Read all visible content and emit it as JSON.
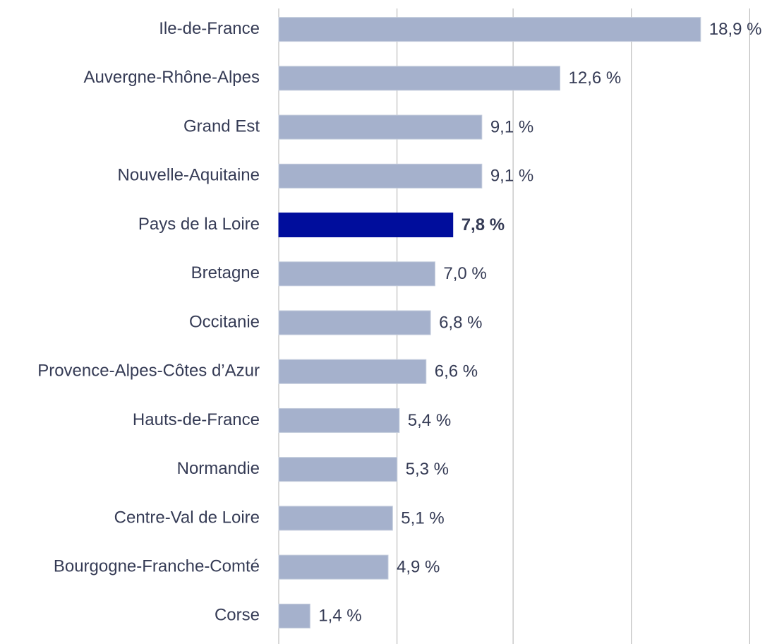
{
  "chart_data": {
    "type": "bar",
    "orientation": "horizontal",
    "categories": [
      "Ile-de-France",
      "Auvergne-Rhône-Alpes",
      "Grand Est",
      "Nouvelle-Aquitaine",
      "Pays de la Loire",
      "Bretagne",
      "Occitanie",
      "Provence-Alpes-Côtes d’Azur",
      "Hauts-de-France",
      "Normandie",
      "Centre-Val de Loire",
      "Bourgogne-Franche-Comté",
      "Corse"
    ],
    "values": [
      18.9,
      12.6,
      9.1,
      9.1,
      7.8,
      7.0,
      6.8,
      6.6,
      5.4,
      5.3,
      5.1,
      4.9,
      1.4
    ],
    "value_labels": [
      "18,9 %",
      "12,6 %",
      "9,1 %",
      "9,1 %",
      "7,8 %",
      "7,0 %",
      "6,8 %",
      "6,6 %",
      "5,4 %",
      "5,3 %",
      "5,1 %",
      "4,9 %",
      "1,4 %"
    ],
    "color": "#a5b1cc",
    "highlight": {
      "index": 4,
      "color": "#000d9c"
    },
    "xlim": [
      0,
      22.1
    ],
    "xticks": [
      0,
      5.3,
      10.5,
      15.8,
      21.1
    ],
    "grid": true
  }
}
